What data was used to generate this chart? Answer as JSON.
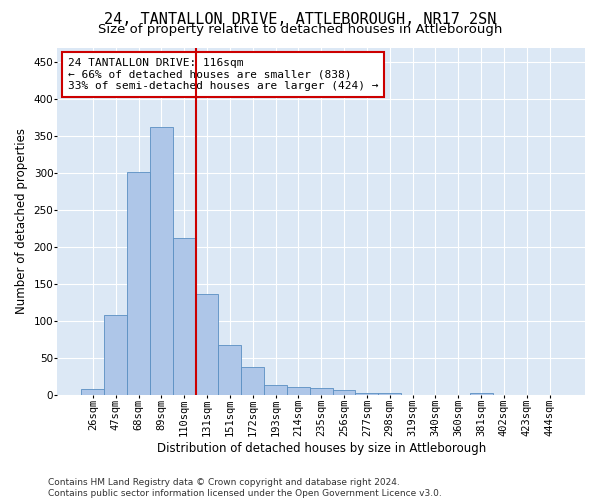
{
  "title": "24, TANTALLON DRIVE, ATTLEBOROUGH, NR17 2SN",
  "subtitle": "Size of property relative to detached houses in Attleborough",
  "xlabel": "Distribution of detached houses by size in Attleborough",
  "ylabel": "Number of detached properties",
  "bar_values": [
    8,
    108,
    302,
    362,
    212,
    136,
    68,
    38,
    13,
    10,
    9,
    6,
    3,
    3,
    0,
    0,
    0,
    3,
    0,
    0,
    0
  ],
  "bar_labels": [
    "26sqm",
    "47sqm",
    "68sqm",
    "89sqm",
    "110sqm",
    "131sqm",
    "151sqm",
    "172sqm",
    "193sqm",
    "214sqm",
    "235sqm",
    "256sqm",
    "277sqm",
    "298sqm",
    "319sqm",
    "340sqm",
    "360sqm",
    "381sqm",
    "402sqm",
    "423sqm",
    "444sqm"
  ],
  "bar_color": "#aec6e8",
  "bar_edge_color": "#5a8fc2",
  "background_color": "#dce8f5",
  "vline_color": "#cc0000",
  "ylim": [
    0,
    470
  ],
  "yticks": [
    0,
    50,
    100,
    150,
    200,
    250,
    300,
    350,
    400,
    450
  ],
  "annotation_text": "24 TANTALLON DRIVE: 116sqm\n← 66% of detached houses are smaller (838)\n33% of semi-detached houses are larger (424) →",
  "footer_line1": "Contains HM Land Registry data © Crown copyright and database right 2024.",
  "footer_line2": "Contains public sector information licensed under the Open Government Licence v3.0.",
  "title_fontsize": 11,
  "subtitle_fontsize": 9.5,
  "axis_label_fontsize": 8.5,
  "tick_fontsize": 7.5,
  "annotation_fontsize": 8,
  "footer_fontsize": 6.5,
  "vline_bar_index": 4
}
